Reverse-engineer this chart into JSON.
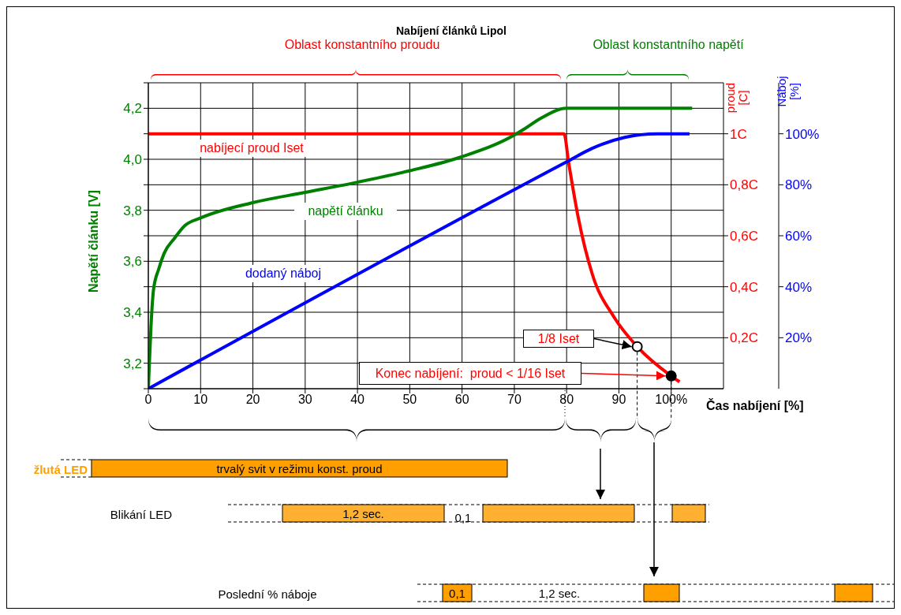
{
  "chart_data": {
    "type": "line",
    "title": "Nabíjení článků Lipol",
    "xlabel": "Čas nabíjení [%]",
    "ylabel": "Napětí článku [V]",
    "y2label": "proud [C]",
    "y3label": "Náboj [%]",
    "xlim": [
      0,
      110
    ],
    "xticks": [
      0,
      10,
      20,
      30,
      40,
      50,
      60,
      70,
      80,
      90,
      {
        "value": 100,
        "label": "100%"
      }
    ],
    "ylim": [
      3.1,
      4.3
    ],
    "yticks": [
      {
        "value": 3.1,
        "label": null
      },
      {
        "value": 3.2,
        "label": "3,2"
      },
      {
        "value": 3.3,
        "label": null
      },
      {
        "value": 3.4,
        "label": "3,4"
      },
      {
        "value": 3.5,
        "label": null
      },
      {
        "value": 3.6,
        "label": "3,6"
      },
      {
        "value": 3.7,
        "label": null
      },
      {
        "value": 3.8,
        "label": "3,8"
      },
      {
        "value": 3.9,
        "label": null
      },
      {
        "value": 4.0,
        "label": "4,0"
      },
      {
        "value": 4.1,
        "label": null
      },
      {
        "value": 4.2,
        "label": "4,2"
      },
      {
        "value": 4.3,
        "label": null
      }
    ],
    "y2lim": [
      0,
      1.2
    ],
    "y2ticks": [
      {
        "value": 0.2,
        "label": "0,2C"
      },
      {
        "value": 0.4,
        "label": "0,4C"
      },
      {
        "value": 0.6,
        "label": "0,6C"
      },
      {
        "value": 0.8,
        "label": "0,8C"
      },
      {
        "value": 1,
        "label": "1C"
      }
    ],
    "y3lim": [
      0,
      120
    ],
    "y3ticks": [
      {
        "value": 20,
        "label": "20%"
      },
      {
        "value": 40,
        "label": "40%"
      },
      {
        "value": 60,
        "label": "60%"
      },
      {
        "value": 80,
        "label": "80%"
      },
      {
        "value": 100,
        "label": "100%"
      }
    ],
    "grid": true,
    "series": [
      {
        "name": "nabíjecí proud Iset",
        "color": "#ff0000",
        "axis": "y2",
        "x": [
          0,
          79.5,
          80.4,
          82.2,
          84.9,
          89.1,
          93.5,
          100,
          101.6
        ],
        "values": [
          1,
          1,
          0.885,
          0.674,
          0.45,
          0.28,
          0.165,
          0.05,
          0.027
        ]
      },
      {
        "name": "napětí článku",
        "color": "#008000",
        "x": [
          0,
          0.2,
          0.5,
          1,
          2,
          3,
          5,
          7,
          10,
          20,
          30,
          40,
          50,
          60,
          70,
          72,
          75,
          80,
          104
        ],
        "values": [
          3.1,
          3.2,
          3.34,
          3.49,
          3.57,
          3.63,
          3.69,
          3.74,
          3.77,
          3.83,
          3.87,
          3.91,
          3.955,
          4.01,
          4.095,
          4.12,
          4.16,
          4.2,
          4.2
        ]
      },
      {
        "name": "dodaný náboj",
        "color": "#0000ff",
        "axis": "y3",
        "x": [
          0,
          80,
          84.9,
          91.1,
          97.3,
          103.5
        ],
        "values": [
          0,
          89,
          94.3,
          98.6,
          100,
          100
        ]
      },
      {
        "type": "scatter",
        "color": "#ffffff",
        "axis": "y2",
        "x": [
          93.5
        ],
        "values": [
          0.165
        ]
      },
      {
        "type": "scatter",
        "color": "#000000",
        "axis": "y2",
        "x": [
          100
        ],
        "values": [
          0.05
        ]
      }
    ],
    "annotations": [
      "Oblast konstantního proudu",
      "Oblast konstantního napětí",
      {
        "text": "1/8 Iset",
        "x": 93.5,
        "y": 3.265
      },
      {
        "text": "Konec nabíjení:  proud < 1/16 Iset",
        "x": 100,
        "y": 3.15
      },
      "žlutá LED",
      "trvalý svit v režimu konst. proud",
      "Blikání LED",
      "1,2 sec.",
      "0,1",
      "Poslední % náboje",
      "0,1",
      "1,2 sec."
    ]
  }
}
